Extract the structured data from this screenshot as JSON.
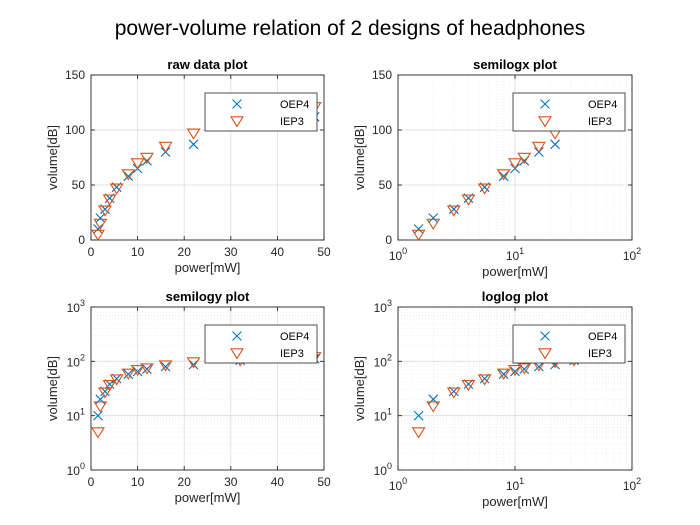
{
  "figure": {
    "title": "power-volume relation of 2 designs of headphones"
  },
  "colors": {
    "OEP4": "#0072BD",
    "IEP3": "#D95319",
    "grid": "#dcdcdc",
    "minor_grid": "#ebebeb",
    "axis": "#262626"
  },
  "chart_data": [
    {
      "type": "scatter",
      "title": "raw data plot",
      "xlabel": "power[mW]",
      "ylabel": "volume[dB]",
      "xscale": "linear",
      "yscale": "linear",
      "xlim": [
        0,
        50
      ],
      "ylim": [
        0,
        150
      ],
      "xticks": [
        0,
        10,
        20,
        30,
        40,
        50
      ],
      "yticks": [
        0,
        50,
        100,
        150
      ],
      "grid": true,
      "legend_position": "top-right",
      "series": [
        {
          "name": "OEP4",
          "marker": "x",
          "x": [
            1.5,
            2,
            3,
            4,
            5.5,
            8,
            10,
            12,
            16,
            22,
            32,
            48
          ],
          "y": [
            10,
            20,
            28,
            38,
            48,
            58,
            65,
            72,
            80,
            87,
            105,
            112
          ]
        },
        {
          "name": "IEP3",
          "marker": "triangle-down",
          "x": [
            1.5,
            2,
            3,
            4,
            5.5,
            8,
            10,
            12,
            16,
            22,
            32,
            48
          ],
          "y": [
            5,
            15,
            27,
            37,
            47,
            60,
            70,
            75,
            85,
            97,
            105,
            121
          ]
        }
      ]
    },
    {
      "type": "scatter",
      "title": "semilogx plot",
      "xlabel": "power[mW]",
      "ylabel": "volume[dB]",
      "xscale": "log",
      "yscale": "linear",
      "xlim": [
        1,
        100
      ],
      "ylim": [
        0,
        150
      ],
      "xticks": [
        "10^0",
        "10^1",
        "10^2"
      ],
      "yticks": [
        0,
        50,
        100,
        150
      ],
      "grid": true,
      "legend_position": "top-right",
      "series": [
        {
          "name": "OEP4",
          "marker": "x",
          "x": [
            1.5,
            2,
            3,
            4,
            5.5,
            8,
            10,
            12,
            16,
            22,
            32,
            48
          ],
          "y": [
            10,
            20,
            28,
            38,
            48,
            58,
            65,
            72,
            80,
            87,
            105,
            112
          ]
        },
        {
          "name": "IEP3",
          "marker": "triangle-down",
          "x": [
            1.5,
            2,
            3,
            4,
            5.5,
            8,
            10,
            12,
            16,
            22,
            32,
            48
          ],
          "y": [
            5,
            15,
            27,
            37,
            47,
            60,
            70,
            75,
            85,
            97,
            105,
            121
          ]
        }
      ]
    },
    {
      "type": "scatter",
      "title": "semilogy plot",
      "xlabel": "power[mW]",
      "ylabel": "volume[dB]",
      "xscale": "linear",
      "yscale": "log",
      "xlim": [
        0,
        50
      ],
      "ylim": [
        1,
        1000
      ],
      "xticks": [
        0,
        10,
        20,
        30,
        40,
        50
      ],
      "yticks": [
        "10^0",
        "10^1",
        "10^2",
        "10^3"
      ],
      "grid": true,
      "legend_position": "top-right",
      "series": [
        {
          "name": "OEP4",
          "marker": "x",
          "x": [
            1.5,
            2,
            3,
            4,
            5.5,
            8,
            10,
            12,
            16,
            22,
            32,
            48
          ],
          "y": [
            10,
            20,
            28,
            38,
            48,
            58,
            65,
            72,
            80,
            87,
            105,
            112
          ]
        },
        {
          "name": "IEP3",
          "marker": "triangle-down",
          "x": [
            1.5,
            2,
            3,
            4,
            5.5,
            8,
            10,
            12,
            16,
            22,
            32,
            48
          ],
          "y": [
            5,
            15,
            27,
            37,
            47,
            60,
            70,
            75,
            85,
            97,
            105,
            121
          ]
        }
      ]
    },
    {
      "type": "scatter",
      "title": "loglog plot",
      "xlabel": "power[mW]",
      "ylabel": "volume[dB]",
      "xscale": "log",
      "yscale": "log",
      "xlim": [
        1,
        100
      ],
      "ylim": [
        1,
        1000
      ],
      "xticks": [
        "10^0",
        "10^1",
        "10^2"
      ],
      "yticks": [
        "10^0",
        "10^1",
        "10^2",
        "10^3"
      ],
      "grid": true,
      "legend_position": "top-right",
      "series": [
        {
          "name": "OEP4",
          "marker": "x",
          "x": [
            1.5,
            2,
            3,
            4,
            5.5,
            8,
            10,
            12,
            16,
            22,
            32,
            48
          ],
          "y": [
            10,
            20,
            28,
            38,
            48,
            58,
            65,
            72,
            80,
            87,
            105,
            112
          ]
        },
        {
          "name": "IEP3",
          "marker": "triangle-down",
          "x": [
            1.5,
            2,
            3,
            4,
            5.5,
            8,
            10,
            12,
            16,
            22,
            32,
            48
          ],
          "y": [
            5,
            15,
            27,
            37,
            47,
            60,
            70,
            75,
            85,
            97,
            105,
            121
          ]
        }
      ]
    }
  ]
}
